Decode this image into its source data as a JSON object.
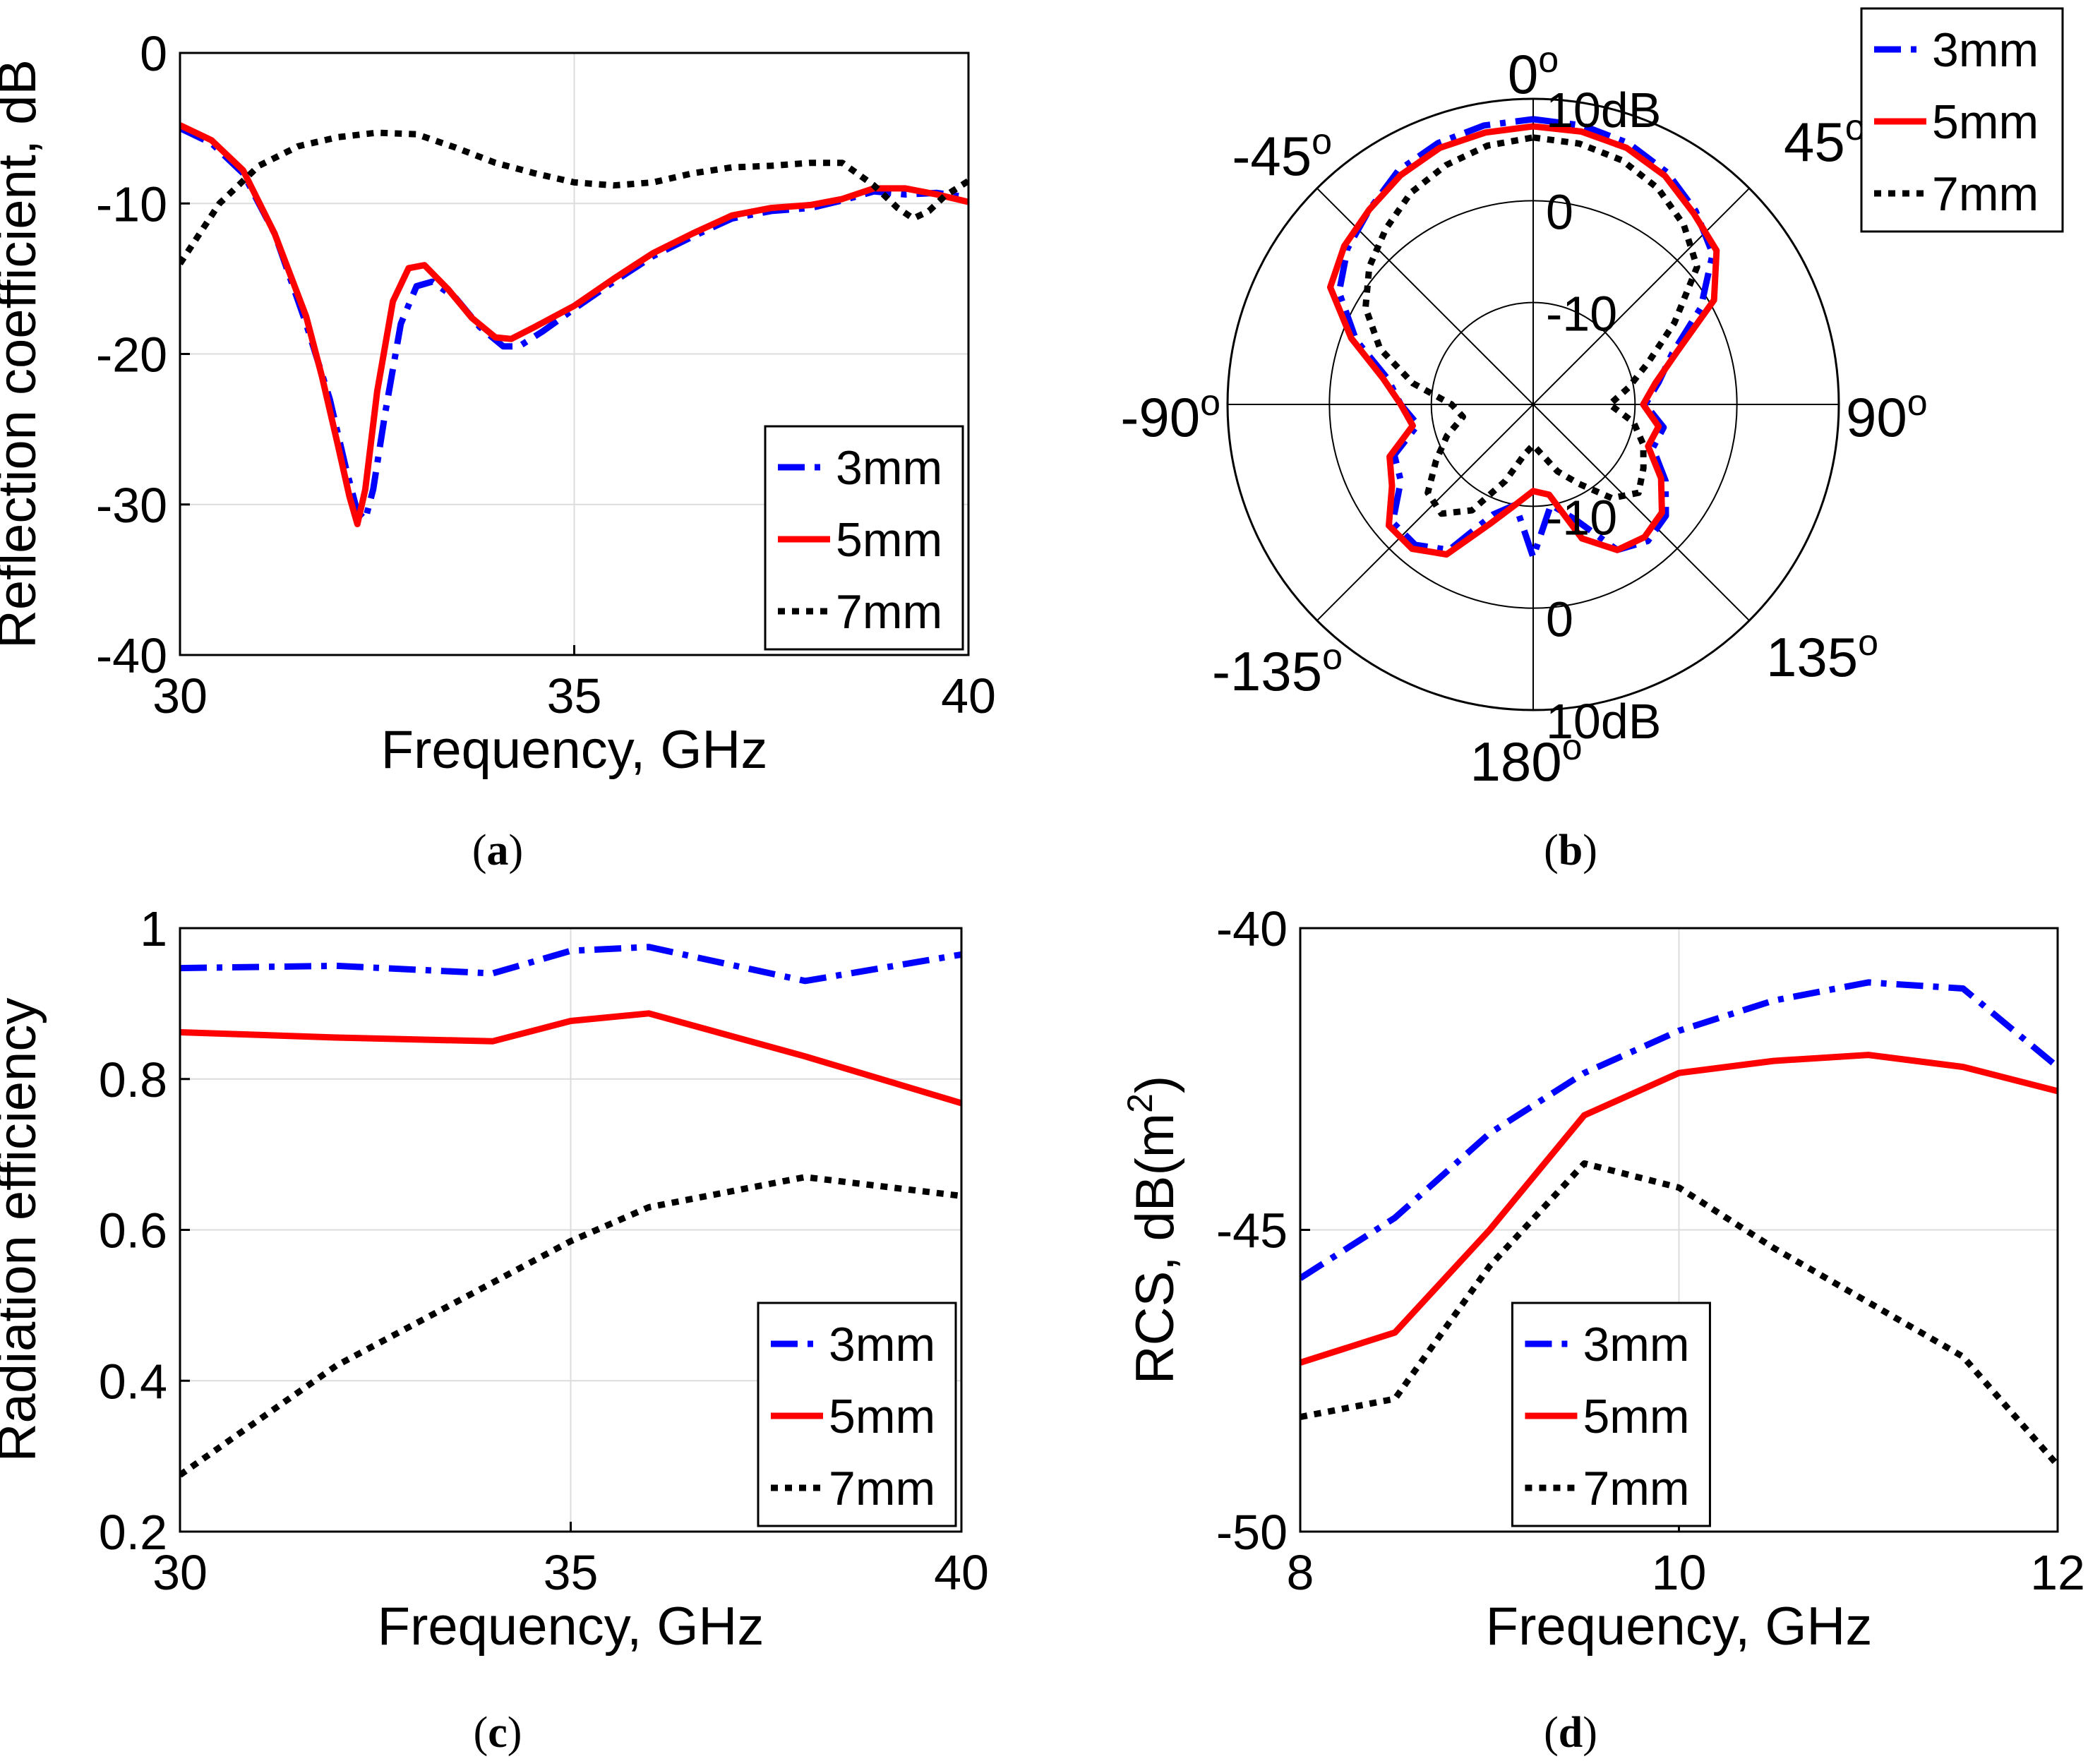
{
  "figure": {
    "panels": [
      {
        "id": "a",
        "label_open": "(",
        "label": "a",
        "label_close": ")"
      },
      {
        "id": "b",
        "label_open": "(",
        "label": "b",
        "label_close": ")"
      },
      {
        "id": "c",
        "label_open": "(",
        "label": "c",
        "label_close": ")"
      },
      {
        "id": "d",
        "label_open": "(",
        "label": "d",
        "label_close": ")"
      }
    ]
  },
  "styles": {
    "3mm": {
      "color": "#0000ff",
      "dash": "dashdot"
    },
    "5mm": {
      "color": "#ff0000",
      "dash": "solid"
    },
    "7mm": {
      "color": "#000000",
      "dash": "dotted"
    },
    "grid_color": "#dcdcdc",
    "axis_color": "#000000"
  },
  "chart_data": [
    {
      "id": "a",
      "type": "line",
      "title": "",
      "xlabel": "Frequency, GHz",
      "ylabel": "Reflection coefficient, dB",
      "xlim": [
        30,
        40
      ],
      "ylim": [
        -40,
        0
      ],
      "xticks": [
        30,
        35,
        40
      ],
      "xtick_labels": [
        "30",
        "35",
        "40"
      ],
      "yticks": [
        0,
        -10,
        -20,
        -30,
        -40
      ],
      "ytick_labels": [
        "0",
        "-10",
        "-20",
        "-30",
        "-40"
      ],
      "grid": true,
      "legend": {
        "position": "bottom-right",
        "entries": [
          "3mm",
          "5mm",
          "7mm"
        ]
      },
      "series": [
        {
          "name": "3mm",
          "x": [
            30,
            30.4,
            30.8,
            31.2,
            31.6,
            31.9,
            32.1,
            32.25,
            32.35,
            32.45,
            32.6,
            32.8,
            33.0,
            33.2,
            33.5,
            33.8,
            34.1,
            34.3,
            34.6,
            35.0,
            35.5,
            36.0,
            36.5,
            37.0,
            37.5,
            38.0,
            38.4,
            38.8,
            39.2,
            39.6,
            40.0
          ],
          "y": [
            -5,
            -6,
            -8,
            -12,
            -18,
            -23,
            -27.5,
            -30.5,
            -31.0,
            -29.0,
            -24.0,
            -18.0,
            -15.5,
            -15.2,
            -16.3,
            -18.2,
            -19.5,
            -19.5,
            -18.5,
            -17.0,
            -15.2,
            -13.5,
            -12.2,
            -11.0,
            -10.5,
            -10.3,
            -9.8,
            -9.2,
            -9.4,
            -9.3,
            -9.6
          ]
        },
        {
          "name": "5mm",
          "x": [
            30,
            30.4,
            30.8,
            31.2,
            31.6,
            31.8,
            32.0,
            32.15,
            32.25,
            32.35,
            32.5,
            32.7,
            32.9,
            33.1,
            33.4,
            33.7,
            34.0,
            34.2,
            34.5,
            35.0,
            35.5,
            36.0,
            36.5,
            37.0,
            37.5,
            38.0,
            38.4,
            38.8,
            39.2,
            39.6,
            40.0
          ],
          "y": [
            -4.8,
            -5.8,
            -7.8,
            -12,
            -17.5,
            -21.5,
            -26,
            -29.5,
            -31.3,
            -29.0,
            -22.5,
            -16.5,
            -14.3,
            -14.1,
            -15.7,
            -17.6,
            -18.9,
            -19.0,
            -18.2,
            -16.8,
            -15.0,
            -13.3,
            -12.0,
            -10.8,
            -10.3,
            -10.1,
            -9.7,
            -9.0,
            -9.0,
            -9.4,
            -9.9
          ]
        },
        {
          "name": "7mm",
          "x": [
            30,
            30.5,
            31,
            31.5,
            32,
            32.5,
            33,
            33.5,
            34,
            34.5,
            35,
            35.5,
            36,
            36.5,
            37,
            37.5,
            38,
            38.4,
            38.8,
            39.1,
            39.3,
            39.5,
            39.7,
            40.0
          ],
          "y": [
            -14,
            -10,
            -7.5,
            -6.2,
            -5.6,
            -5.3,
            -5.4,
            -6.3,
            -7.3,
            -8.0,
            -8.6,
            -8.8,
            -8.6,
            -8.0,
            -7.6,
            -7.5,
            -7.3,
            -7.3,
            -8.8,
            -10.3,
            -11.0,
            -10.5,
            -9.5,
            -8.5
          ]
        }
      ]
    },
    {
      "id": "b",
      "type": "polar",
      "title": "",
      "rlim": [
        -20,
        10
      ],
      "rticks": [
        10,
        0,
        -10
      ],
      "rtick_labels_top": [
        "10dB",
        "0",
        "-10"
      ],
      "rtick_labels_bottom": [
        "-10",
        "0",
        "10dB"
      ],
      "angle_labels": [
        {
          "angle": 0,
          "text": "0",
          "sup": "o"
        },
        {
          "angle": 45,
          "text": "45",
          "sup": "o"
        },
        {
          "angle": 90,
          "text": "90",
          "sup": "o"
        },
        {
          "angle": 135,
          "text": "135",
          "sup": "o"
        },
        {
          "angle": 180,
          "text": "180",
          "sup": "o"
        },
        {
          "angle": -135,
          "text": "-135",
          "sup": "o"
        },
        {
          "angle": -90,
          "text": "-90",
          "sup": "o"
        },
        {
          "angle": -45,
          "text": "-45",
          "sup": "o"
        }
      ],
      "legend": {
        "position": "top-right",
        "entries": [
          "3mm",
          "5mm",
          "7mm"
        ]
      },
      "series": [
        {
          "name": "3mm",
          "angle": [
            0,
            10,
            20,
            30,
            40,
            50,
            60,
            70,
            80,
            90,
            100,
            110,
            120,
            130,
            140,
            150,
            160,
            170,
            180,
            190,
            200,
            210,
            220,
            230,
            240,
            250,
            260,
            270,
            280,
            290,
            300,
            310,
            320,
            330,
            340,
            350,
            360
          ],
          "r": [
            8.0,
            7.8,
            7.3,
            6.3,
            4.8,
            3.0,
            -1.0,
            -5.5,
            -7.5,
            -9.0,
            -7.0,
            -7.5,
            -5.0,
            -3.0,
            -2.5,
            -3.5,
            -8.0,
            -10.0,
            -5.0,
            -10.0,
            -8.5,
            -3.5,
            -2.0,
            -2.0,
            -5.0,
            -5.5,
            -8.5,
            -7.0,
            -5.5,
            -1.5,
            2.0,
            3.8,
            5.0,
            6.5,
            7.3,
            7.8,
            8.0
          ]
        },
        {
          "name": "5mm",
          "angle": [
            0,
            10,
            20,
            30,
            40,
            50,
            60,
            70,
            80,
            90,
            100,
            110,
            120,
            130,
            140,
            150,
            160,
            170,
            180,
            190,
            200,
            210,
            220,
            230,
            240,
            250,
            260,
            270,
            280,
            290,
            300,
            310,
            320,
            330,
            340,
            350,
            360
          ],
          "r": [
            7.3,
            7.2,
            6.8,
            5.9,
            4.5,
            3.5,
            0.5,
            -5.0,
            -7.8,
            -9.2,
            -7.5,
            -8.0,
            -5.5,
            -3.5,
            -3.0,
            -3.5,
            -6.0,
            -11.0,
            -11.5,
            -10.0,
            -7.5,
            -3.0,
            -1.5,
            -1.5,
            -4.0,
            -5.0,
            -8.0,
            -7.0,
            -5.0,
            -1.0,
            3.0,
            4.2,
            5.0,
            6.0,
            6.8,
            7.1,
            7.3
          ]
        },
        {
          "name": "7mm",
          "angle": [
            0,
            10,
            20,
            30,
            40,
            50,
            60,
            70,
            80,
            90,
            100,
            110,
            120,
            130,
            140,
            150,
            160,
            170,
            180,
            190,
            200,
            210,
            220,
            230,
            240,
            250,
            260,
            270,
            280,
            290,
            300,
            310,
            320,
            330,
            340,
            350,
            360
          ],
          "r": [
            6.2,
            6.0,
            5.5,
            4.5,
            3.0,
            1.0,
            -4.0,
            -8.0,
            -10.5,
            -12.5,
            -10.0,
            -8.5,
            -7.5,
            -6.5,
            -8.0,
            -11.0,
            -13.0,
            -15.0,
            -16.0,
            -15.0,
            -12.0,
            -8.0,
            -6.0,
            -6.5,
            -9.0,
            -11.0,
            -13.0,
            -12.0,
            -8.0,
            -4.0,
            -1.0,
            1.0,
            2.5,
            4.0,
            5.0,
            5.8,
            6.2
          ]
        }
      ]
    },
    {
      "id": "c",
      "type": "line",
      "title": "",
      "xlabel": "Frequency, GHz",
      "ylabel": "Radiation efficiency",
      "xlim": [
        30,
        40
      ],
      "ylim": [
        0.2,
        1
      ],
      "xticks": [
        30,
        35,
        40
      ],
      "xtick_labels": [
        "30",
        "35",
        "40"
      ],
      "yticks": [
        1,
        0.8,
        0.6,
        0.4,
        0.2
      ],
      "ytick_labels": [
        "1",
        "0.8",
        "0.6",
        "0.4",
        "0.2"
      ],
      "grid": true,
      "legend": {
        "position": "bottom-right",
        "entries": [
          "3mm",
          "5mm",
          "7mm"
        ]
      },
      "series": [
        {
          "name": "3mm",
          "x": [
            30,
            32,
            34,
            35,
            36,
            38,
            40
          ],
          "y": [
            0.947,
            0.95,
            0.94,
            0.97,
            0.975,
            0.93,
            0.965
          ]
        },
        {
          "name": "5mm",
          "x": [
            30,
            32,
            34,
            35,
            36,
            38,
            40
          ],
          "y": [
            0.862,
            0.855,
            0.85,
            0.877,
            0.887,
            0.83,
            0.768
          ]
        },
        {
          "name": "7mm",
          "x": [
            30,
            32,
            34,
            35,
            36,
            38,
            40
          ],
          "y": [
            0.275,
            0.42,
            0.53,
            0.585,
            0.63,
            0.67,
            0.645
          ]
        }
      ]
    },
    {
      "id": "d",
      "type": "line",
      "title": "",
      "xlabel": "Frequency, GHz",
      "ylabel": "RCS, dB(m",
      "ylabel_sup": "2",
      "ylabel_close": ")",
      "xlim": [
        8,
        12
      ],
      "ylim": [
        -50,
        -40
      ],
      "xticks": [
        8,
        10,
        12
      ],
      "xtick_labels": [
        "8",
        "10",
        "12"
      ],
      "yticks": [
        -40,
        -45,
        -50
      ],
      "ytick_labels": [
        "-40",
        "-45",
        "-50"
      ],
      "grid": true,
      "legend": {
        "position": "bottom-center",
        "entries": [
          "3mm",
          "5mm",
          "7mm"
        ]
      },
      "series": [
        {
          "name": "3mm",
          "x": [
            8,
            8.5,
            9,
            9.5,
            10,
            10.5,
            11,
            11.5,
            12
          ],
          "y": [
            -45.8,
            -44.8,
            -43.4,
            -42.4,
            -41.7,
            -41.2,
            -40.9,
            -41.0,
            -42.3
          ]
        },
        {
          "name": "5mm",
          "x": [
            8,
            8.5,
            9,
            9.5,
            10,
            10.5,
            11,
            11.5,
            12
          ],
          "y": [
            -47.2,
            -46.7,
            -45.0,
            -43.1,
            -42.4,
            -42.2,
            -42.1,
            -42.3,
            -42.7
          ]
        },
        {
          "name": "7mm",
          "x": [
            8,
            8.5,
            9,
            9.5,
            10,
            10.5,
            11,
            11.5,
            12
          ],
          "y": [
            -48.1,
            -47.8,
            -45.6,
            -43.9,
            -44.3,
            -45.3,
            -46.2,
            -47.1,
            -48.9
          ]
        }
      ]
    }
  ]
}
